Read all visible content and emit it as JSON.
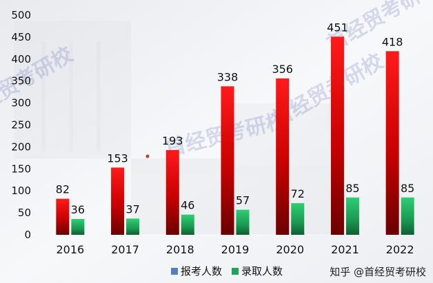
{
  "chart_data": {
    "type": "bar",
    "categories": [
      "2016",
      "2017",
      "2018",
      "2019",
      "2020",
      "2021",
      "2022"
    ],
    "series": [
      {
        "name": "报考人数",
        "values": [
          82,
          153,
          193,
          338,
          356,
          451,
          418
        ],
        "color": "#d40000"
      },
      {
        "name": "录取人数",
        "values": [
          36,
          37,
          46,
          57,
          72,
          85,
          85
        ],
        "color": "#1fa35a"
      }
    ],
    "yticks": [
      0,
      50,
      100,
      150,
      200,
      250,
      300,
      350,
      400,
      450,
      500
    ],
    "ylim": [
      0,
      500
    ],
    "grid": false,
    "legend_position": "bottom-center",
    "legend_swatch_colors": [
      "#4f81bd",
      "#1fa35a"
    ]
  },
  "watermark": {
    "text": "首经贸考研校"
  },
  "credit": {
    "text": "知乎 @首经贸考研校"
  }
}
